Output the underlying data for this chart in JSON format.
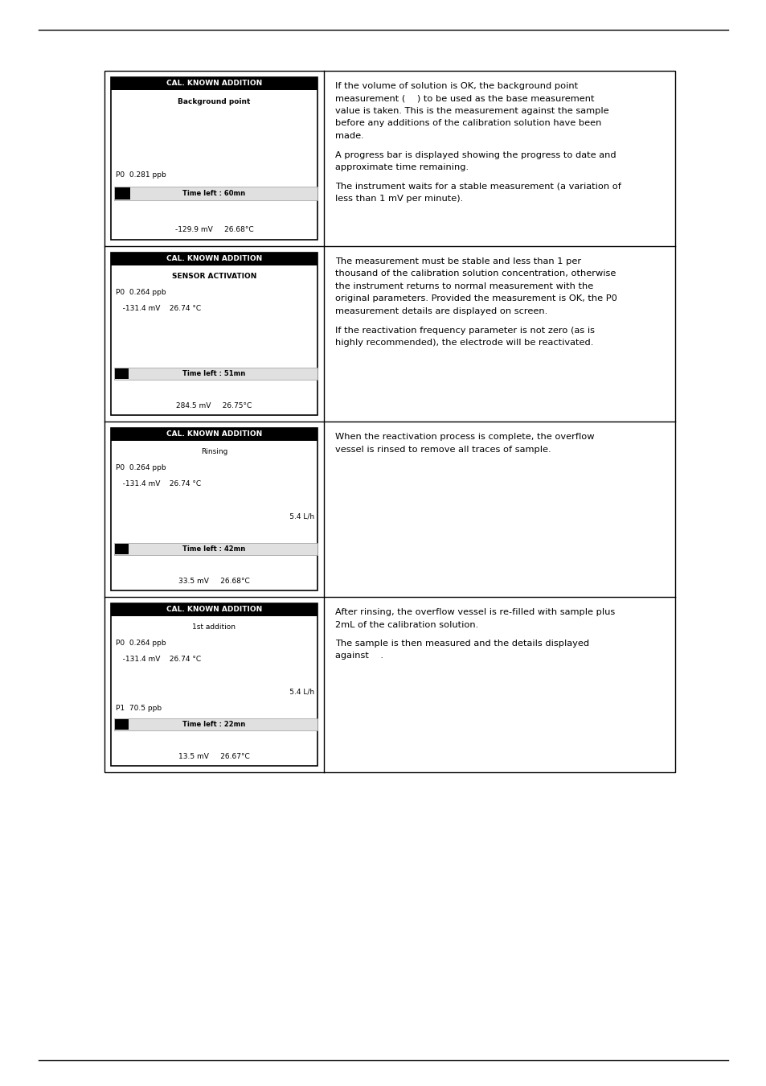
{
  "page_bg": "#ffffff",
  "rows": [
    {
      "screen": {
        "title": "CAL. KNOWN ADDITION",
        "content_lines": [
          {
            "text": "Background point",
            "bold": true,
            "align": "center",
            "type": "normal"
          },
          {
            "text": "",
            "type": "spacer"
          },
          {
            "text": "",
            "type": "spacer"
          },
          {
            "text": "",
            "type": "spacer"
          },
          {
            "text": "P0  0.281 ppb",
            "bold": false,
            "align": "left",
            "type": "normal"
          },
          {
            "text": "Time left : 60mn",
            "type": "progress"
          },
          {
            "text": "",
            "type": "spacer"
          },
          {
            "text": "-129.9 mV     26.68°C",
            "bold": false,
            "align": "center",
            "type": "normal"
          }
        ]
      },
      "text_paragraphs": [
        "If the volume of solution is OK, the background point\nmeasurement (    ) to be used as the base measurement\nvalue is taken. This is the measurement against the sample\nbefore any additions of the calibration solution have been\nmade.",
        "A progress bar is displayed showing the progress to date and\napproximate time remaining.",
        "The instrument waits for a stable measurement (a variation of\nless than 1 mV per minute)."
      ]
    },
    {
      "screen": {
        "title": "CAL. KNOWN ADDITION",
        "content_lines": [
          {
            "text": "SENSOR ACTIVATION",
            "bold": true,
            "align": "center",
            "type": "normal"
          },
          {
            "text": "P0  0.264 ppb",
            "bold": false,
            "align": "left",
            "type": "normal"
          },
          {
            "text": "   -131.4 mV    26.74 °C",
            "bold": false,
            "align": "left",
            "type": "normal"
          },
          {
            "text": "",
            "type": "spacer"
          },
          {
            "text": "",
            "type": "spacer"
          },
          {
            "text": "",
            "type": "spacer"
          },
          {
            "text": "Time left : 51mn",
            "type": "progress"
          },
          {
            "text": "",
            "type": "spacer"
          },
          {
            "text": "284.5 mV     26.75°C",
            "bold": false,
            "align": "center",
            "type": "normal"
          }
        ]
      },
      "text_paragraphs": [
        "The measurement must be stable and less than 1 per\nthousand of the calibration solution concentration, otherwise\nthe instrument returns to normal measurement with the\noriginal parameters. Provided the measurement is OK, the P0\nmeasurement details are displayed on screen.",
        "If the reactivation frequency parameter is not zero (as is\nhighly recommended), the electrode will be reactivated."
      ]
    },
    {
      "screen": {
        "title": "CAL. KNOWN ADDITION",
        "content_lines": [
          {
            "text": "Rinsing",
            "bold": false,
            "align": "center",
            "type": "normal"
          },
          {
            "text": "P0  0.264 ppb",
            "bold": false,
            "align": "left",
            "type": "normal"
          },
          {
            "text": "   -131.4 mV    26.74 °C",
            "bold": false,
            "align": "left",
            "type": "normal"
          },
          {
            "text": "",
            "type": "spacer"
          },
          {
            "text": "                              5.4 L/h",
            "bold": false,
            "align": "right",
            "type": "normal"
          },
          {
            "text": "",
            "type": "spacer"
          },
          {
            "text": "Time left : 42mn",
            "type": "progress"
          },
          {
            "text": "",
            "type": "spacer"
          },
          {
            "text": "33.5 mV     26.68°C",
            "bold": false,
            "align": "center",
            "type": "normal"
          }
        ]
      },
      "text_paragraphs": [
        "When the reactivation process is complete, the overflow\nvessel is rinsed to remove all traces of sample."
      ]
    },
    {
      "screen": {
        "title": "CAL. KNOWN ADDITION",
        "content_lines": [
          {
            "text": "1st addition",
            "bold": false,
            "align": "center",
            "type": "normal"
          },
          {
            "text": "P0  0.264 ppb",
            "bold": false,
            "align": "left",
            "type": "normal"
          },
          {
            "text": "   -131.4 mV    26.74 °C",
            "bold": false,
            "align": "left",
            "type": "normal"
          },
          {
            "text": "",
            "type": "spacer"
          },
          {
            "text": "                              5.4 L/h",
            "bold": false,
            "align": "right",
            "type": "normal"
          },
          {
            "text": "P1  70.5 ppb",
            "bold": false,
            "align": "left",
            "type": "normal"
          },
          {
            "text": "Time left : 22mn",
            "type": "progress"
          },
          {
            "text": "",
            "type": "spacer"
          },
          {
            "text": "13.5 mV     26.67°C",
            "bold": false,
            "align": "center",
            "type": "normal"
          }
        ]
      },
      "text_paragraphs": [
        "After rinsing, the overflow vessel is re-filled with sample plus\n2mL of the calibration solution.",
        "The sample is then measured and the details displayed\nagainst    ."
      ]
    }
  ]
}
